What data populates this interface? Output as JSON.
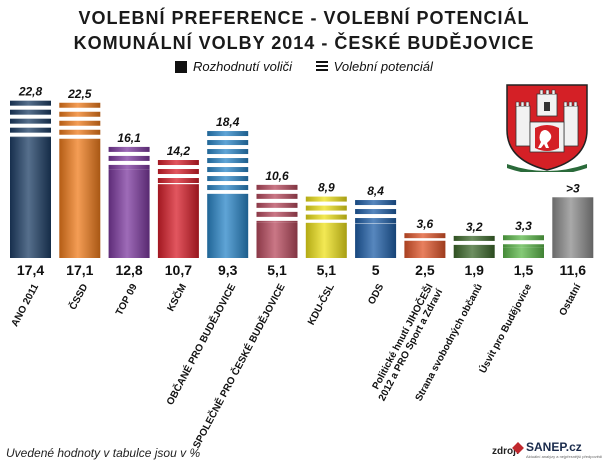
{
  "titles": {
    "line1": "VOLEBNÍ PREFERENCE - VOLEBNÍ POTENCIÁL",
    "line2": "KOMUNÁLNÍ VOLBY 2014 - ČESKÉ BUDĚJOVICE"
  },
  "legend": {
    "decided": "Rozhodnutí voliči",
    "potential": "Volební potenciál"
  },
  "footnote": "Uvedené hodnoty v tabulce jsou v %",
  "source_label": "zdroj:",
  "source_name": "SANEP.cz",
  "source_tagline": "Aktuální analýzy a nejpřesnější předpovědi",
  "crest_icon": "ceske-budejovice-coat-of-arms-icon",
  "colors": {
    "ano": "#1e3f66",
    "cssd": "#f07c1c",
    "top09": "#7d3aa0",
    "kscm": "#d81e2a",
    "obcane": "#2a86c8",
    "spolecne": "#b84a5e",
    "kducsl": "#efe21b",
    "ods": "#1f5fa8",
    "jihocesi": "#e0552a",
    "svobodni": "#3e6a2c",
    "usvit": "#5cb84a",
    "ostatni": "#8c8c8c"
  },
  "chart_data": {
    "type": "bar",
    "title": "VOLEBNÍ PREFERENCE - VOLEBNÍ POTENCIÁL",
    "subtitle": "KOMUNÁLNÍ VOLBY 2014 - ČESKÉ BUDĚJOVICE",
    "categories": [
      "ANO 2011",
      "ČSSD",
      "TOP 09",
      "KSČM",
      "OBČANÉ PRO BUDĚJOVICE",
      "SPOLEČNĚ PRO ČESKÉ BUDĚJOVICE",
      "KDU-ČSL",
      "ODS",
      "Politické hnutí JIHOČEŠI 2012 a PRO Sport a Zdraví",
      "Strana svobodných občanů",
      "Úsvit pro Budějovice",
      "Ostatní"
    ],
    "series": [
      {
        "name": "Rozhodnutí voliči",
        "values": [
          17.4,
          17.1,
          12.8,
          10.7,
          9.3,
          5.1,
          5.1,
          5,
          2.5,
          1.9,
          1.5,
          11.6
        ],
        "labels": [
          "17,4",
          "17,1",
          "12,8",
          "10,7",
          "9,3",
          "5,1",
          "5,1",
          "5",
          "2,5",
          "1,9",
          "1,5",
          "11,6"
        ]
      },
      {
        "name": "Volební potenciál",
        "values": [
          22.8,
          22.5,
          16.1,
          14.2,
          18.4,
          10.6,
          8.9,
          8.4,
          3.6,
          3.2,
          3.3,
          null
        ],
        "labels": [
          "22,8",
          "22,5",
          "16,1",
          "14,2",
          "18,4",
          "10,6",
          "8,9",
          "8,4",
          "3,6",
          "3,2",
          "3,3",
          ">3"
        ]
      }
    ],
    "color_keys": [
      "ano",
      "cssd",
      "top09",
      "kscm",
      "obcane",
      "spolecne",
      "kducsl",
      "ods",
      "jihocesi",
      "svobodni",
      "usvit",
      "ostatni"
    ],
    "legend_position": "top",
    "grid": false
  }
}
